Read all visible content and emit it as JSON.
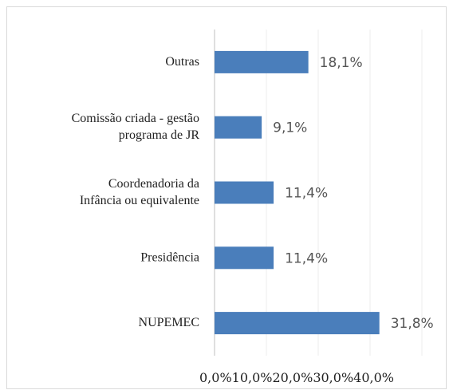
{
  "chart_data": {
    "type": "barh",
    "categories": [
      [
        "Outras"
      ],
      [
        "Comissão criada - gestão",
        "programa de JR"
      ],
      [
        "Coordenadoria da",
        "Infância ou equivalente"
      ],
      [
        "Presidência"
      ],
      [
        "NUPEMEC"
      ]
    ],
    "values": [
      18.1,
      9.1,
      11.4,
      11.4,
      31.8
    ],
    "value_labels": [
      "18,1%",
      "9,1%",
      "11,4%",
      "11,4%",
      "31,8%"
    ],
    "color": "#4a7ebb",
    "xlim": [
      0,
      40
    ],
    "xticks": [
      {
        "value": 0,
        "label": "0,0%"
      },
      {
        "value": 10,
        "label": "10,0%"
      },
      {
        "value": 20,
        "label": "20,0%"
      },
      {
        "value": 30,
        "label": "30,0%"
      },
      {
        "value": 40,
        "label": "40,0%"
      }
    ],
    "grid": true
  }
}
